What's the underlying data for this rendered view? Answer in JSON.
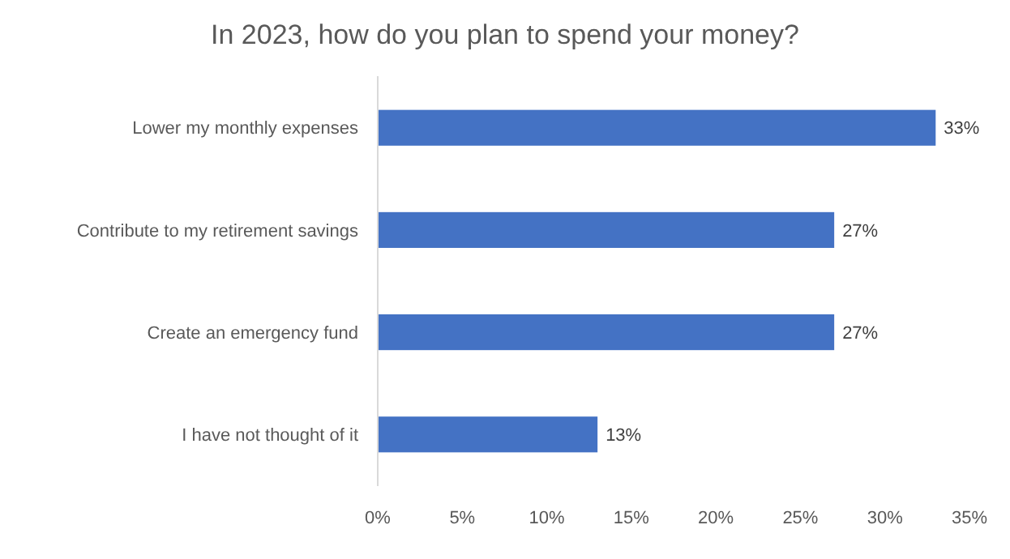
{
  "chart_data": {
    "type": "bar",
    "orientation": "horizontal",
    "title": "In 2023, how do you plan to spend your money?",
    "categories": [
      "Lower my monthly expenses",
      "Contribute to my retirement savings",
      "Create an emergency fund",
      "I have not thought of it"
    ],
    "values": [
      33,
      27,
      27,
      13
    ],
    "value_labels": [
      "33%",
      "27%",
      "27%",
      "13%"
    ],
    "color": "#4472c4",
    "xlim": [
      0,
      35
    ],
    "xticks": [
      {
        "value": 0,
        "label": "0%"
      },
      {
        "value": 5,
        "label": "5%"
      },
      {
        "value": 10,
        "label": "10%"
      },
      {
        "value": 15,
        "label": "15%"
      },
      {
        "value": 20,
        "label": "20%"
      },
      {
        "value": 25,
        "label": "25%"
      },
      {
        "value": 30,
        "label": "30%"
      },
      {
        "value": 35,
        "label": "35%"
      }
    ],
    "grid": false
  }
}
